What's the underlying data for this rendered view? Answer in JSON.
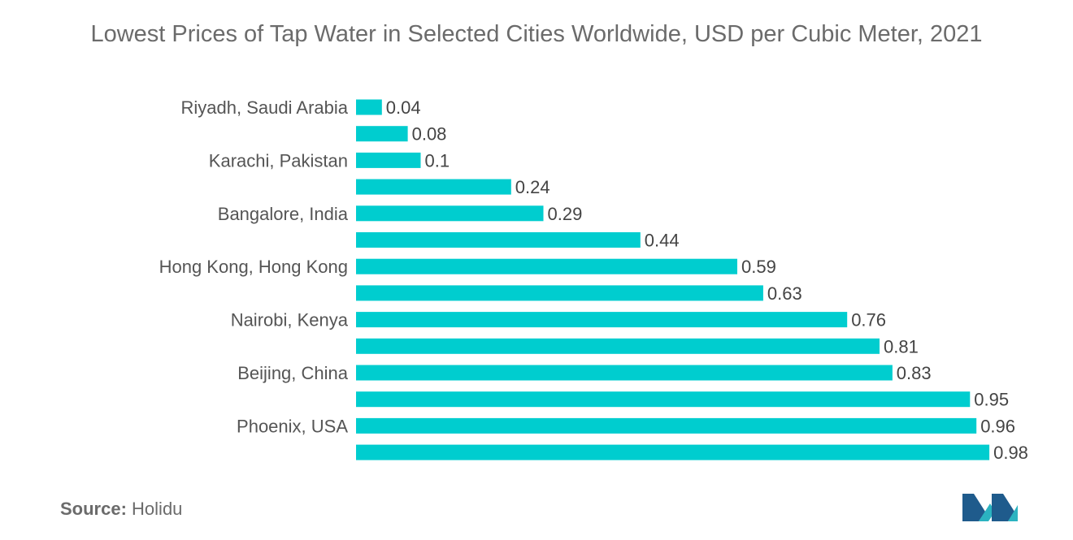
{
  "colors": {
    "bar": "#00CDCF",
    "logo_dark": "#1f5b8c",
    "logo_light": "#2bb3c0"
  },
  "chart_data": {
    "type": "bar",
    "orientation": "horizontal",
    "title": "Lowest Prices of Tap Water in Selected Cities Worldwide, USD per Cubic Meter, 2021",
    "xlabel": "",
    "ylabel": "",
    "xlim": [
      0,
      1.0
    ],
    "grid": false,
    "legend": "none",
    "categories": [
      "Riyadh, Saudi Arabia",
      "",
      "Karachi, Pakistan",
      "",
      "Bangalore, India",
      "",
      "Hong Kong, Hong Kong",
      "",
      "Nairobi, Kenya",
      "",
      "Beijing, China",
      "",
      "Phoenix, USA",
      ""
    ],
    "values": [
      0.04,
      0.08,
      0.1,
      0.24,
      0.29,
      0.44,
      0.59,
      0.63,
      0.76,
      0.81,
      0.83,
      0.95,
      0.96,
      0.98
    ],
    "value_labels": [
      "0.04",
      "0.08",
      "0.1",
      "0.24",
      "0.29",
      "0.44",
      "0.59",
      "0.63",
      "0.76",
      "0.81",
      "0.83",
      "0.95",
      "0.96",
      "0.98"
    ]
  },
  "source": {
    "label": "Source:",
    "value": "Holidu"
  }
}
